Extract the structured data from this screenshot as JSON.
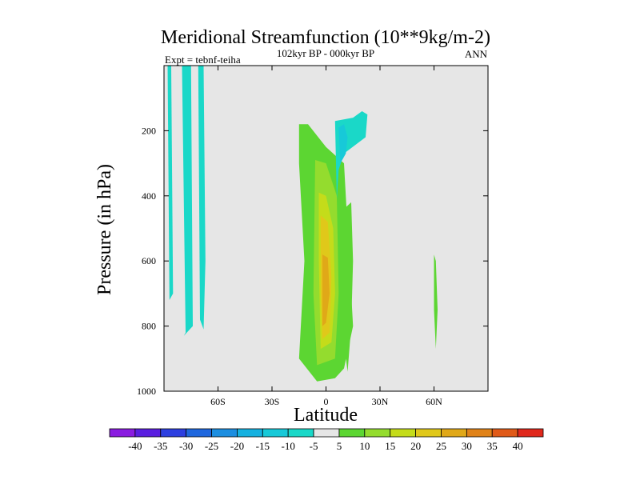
{
  "chart_data": {
    "type": "contour",
    "title": "Meridional Streamfunction (10**9kg/m-2)",
    "subtitle": "102kyr BP - 000kyr BP",
    "expt_label": "Expt = tebnf-teiha",
    "season": "ANN",
    "xlabel": "Latitude",
    "ylabel": "Pressure (in hPa)",
    "xlim": [
      -90,
      90
    ],
    "ylim": [
      0,
      1000
    ],
    "y_inverted": true,
    "xticks": [
      {
        "value": -60,
        "label": "60S"
      },
      {
        "value": -30,
        "label": "30S"
      },
      {
        "value": 0,
        "label": "0"
      },
      {
        "value": 30,
        "label": "30N"
      },
      {
        "value": 60,
        "label": "60N"
      }
    ],
    "yticks": [
      {
        "value": 200,
        "label": "200"
      },
      {
        "value": 400,
        "label": "400"
      },
      {
        "value": 600,
        "label": "600"
      },
      {
        "value": 800,
        "label": "800"
      },
      {
        "value": 1000,
        "label": "1000"
      }
    ],
    "background_color": "#e6e6e6",
    "colorbar": {
      "labels": [
        "-40",
        "-35",
        "-30",
        "-25",
        "-20",
        "-15",
        "-10",
        "-5",
        "5",
        "10",
        "15",
        "20",
        "25",
        "30",
        "35",
        "40"
      ],
      "colors": [
        "#8a1ce0",
        "#5a1ee0",
        "#2d3fe0",
        "#1f67de",
        "#1c8ee0",
        "#15b1e0",
        "#17c9d8",
        "#1ad8c8",
        "#e6e6e6",
        "#5cd632",
        "#94dc2e",
        "#c4dc1a",
        "#e0c81a",
        "#e0a818",
        "#e08218",
        "#e05a18",
        "#e0281c"
      ]
    },
    "regions": [
      {
        "name": "band-70S-west",
        "level": -5,
        "lat": [
          -88,
          -86,
          -85,
          -87
        ],
        "p": [
          0,
          0,
          700,
          720
        ]
      },
      {
        "name": "band-70S",
        "level": -5,
        "lat": [
          -80,
          -75,
          -74,
          -79,
          -78
        ],
        "p": [
          0,
          0,
          800,
          830,
          820
        ]
      },
      {
        "name": "band-65S",
        "level": -5,
        "lat": [
          -71,
          -68,
          -67,
          -68,
          -70
        ],
        "p": [
          0,
          0,
          600,
          810,
          780
        ]
      },
      {
        "name": "cell-south",
        "level": 5,
        "lat": [
          -15,
          -10,
          0,
          10,
          12,
          15,
          10,
          5,
          -5,
          -15,
          -12,
          -15
        ],
        "p": [
          180,
          180,
          250,
          300,
          500,
          800,
          930,
          960,
          970,
          900,
          600,
          300
        ]
      },
      {
        "name": "cell-south-10",
        "level": 10,
        "lat": [
          -6,
          0,
          6,
          7,
          5,
          -5,
          -7
        ],
        "p": [
          290,
          300,
          400,
          700,
          900,
          920,
          700
        ]
      },
      {
        "name": "cell-south-15",
        "level": 15,
        "lat": [
          -4,
          0,
          4,
          5,
          3,
          -3,
          -4
        ],
        "p": [
          390,
          400,
          500,
          700,
          850,
          870,
          600
        ]
      },
      {
        "name": "cell-south-20",
        "level": 20,
        "lat": [
          -3,
          1,
          3,
          2,
          -2,
          -3
        ],
        "p": [
          460,
          480,
          650,
          820,
          840,
          700
        ]
      },
      {
        "name": "cell-south-25",
        "level": 25,
        "lat": [
          -2,
          1,
          2,
          0,
          -2
        ],
        "p": [
          580,
          590,
          700,
          790,
          800
        ]
      },
      {
        "name": "cell-north-tropic",
        "level": 5,
        "lat": [
          10,
          14,
          15,
          14,
          12,
          10,
          9
        ],
        "p": [
          440,
          420,
          600,
          800,
          940,
          850,
          600
        ]
      },
      {
        "name": "cell-60N",
        "level": 5,
        "lat": [
          60,
          61,
          62,
          61,
          60
        ],
        "p": [
          580,
          600,
          750,
          870,
          750
        ]
      },
      {
        "name": "upper-neg-north",
        "level": -5,
        "lat": [
          5,
          15,
          20,
          23,
          22,
          10,
          7,
          6
        ],
        "p": [
          170,
          160,
          140,
          150,
          220,
          270,
          320,
          410
        ]
      },
      {
        "name": "upper-neg-north-10",
        "level": -10,
        "lat": [
          7,
          10,
          12,
          11,
          8
        ],
        "p": [
          190,
          180,
          220,
          270,
          300
        ]
      }
    ]
  }
}
